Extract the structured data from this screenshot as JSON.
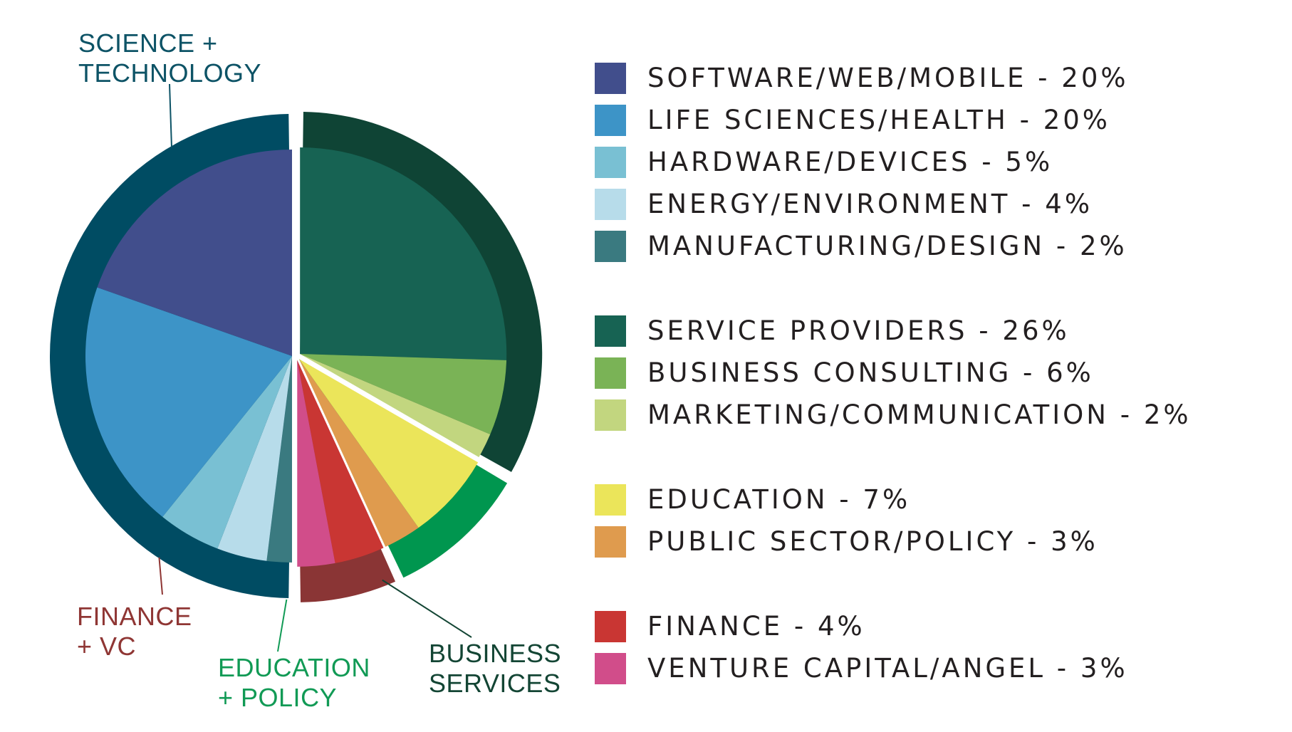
{
  "chart_data": {
    "type": "pie",
    "groups": [
      {
        "label_lines": [
          "SCIENCE +",
          "TECHNOLOGY"
        ],
        "color": "#004c63",
        "label_color": "#0d5366",
        "items": [
          {
            "name": "SOFTWARE/WEB/MOBILE",
            "value": 20,
            "label": "SOFTWARE/WEB/MOBILE - 20%",
            "color": "#414e8c"
          },
          {
            "name": "LIFE SCIENCES/HEALTH",
            "value": 20,
            "label": "LIFE SCIENCES/HEALTH - 20%",
            "color": "#3d94c7"
          },
          {
            "name": "HARDWARE/DEVICES",
            "value": 5,
            "label": "HARDWARE/DEVICES - 5%",
            "color": "#79c0d3"
          },
          {
            "name": "ENERGY/ENVIRONMENT",
            "value": 4,
            "label": "ENERGY/ENVIRONMENT - 4%",
            "color": "#b7dcea"
          },
          {
            "name": "MANUFACTURING/DESIGN",
            "value": 2,
            "label": "MANUFACTURING/DESIGN - 2%",
            "color": "#3a7a80"
          }
        ]
      },
      {
        "label_lines": [
          "BUSINESS",
          "SERVICES"
        ],
        "color": "#0f4435",
        "label_color": "#134534",
        "items": [
          {
            "name": "SERVICE PROVIDERS",
            "value": 26,
            "label": "SERVICE PROVIDERS - 26%",
            "color": "#176353"
          },
          {
            "name": "BUSINESS CONSULTING",
            "value": 6,
            "label": "BUSINESS CONSULTING - 6%",
            "color": "#7ab356"
          },
          {
            "name": "MARKETING/COMMUNICATION",
            "value": 2,
            "label": "MARKETING/COMMUNICATION - 2%",
            "color": "#c2d67f"
          }
        ]
      },
      {
        "label_lines": [
          "EDUCATION",
          "+ POLICY"
        ],
        "color": "#00964f",
        "label_color": "#119a55",
        "items": [
          {
            "name": "EDUCATION",
            "value": 7,
            "label": "EDUCATION - 7%",
            "color": "#ebe55a"
          },
          {
            "name": "PUBLIC SECTOR/POLICY",
            "value": 3,
            "label": "PUBLIC SECTOR/POLICY - 3%",
            "color": "#df9b4e"
          }
        ]
      },
      {
        "label_lines": [
          "FINANCE",
          "+ VC"
        ],
        "color": "#8a3535",
        "label_color": "#8f3634",
        "items": [
          {
            "name": "FINANCE",
            "value": 4,
            "label": "FINANCE - 4%",
            "color": "#c93633"
          },
          {
            "name": "VENTURE CAPITAL/ANGEL",
            "value": 3,
            "label": "VENTURE CAPITAL/ANGEL - 3%",
            "color": "#d14d8a"
          }
        ]
      }
    ],
    "legend_position": "right"
  }
}
